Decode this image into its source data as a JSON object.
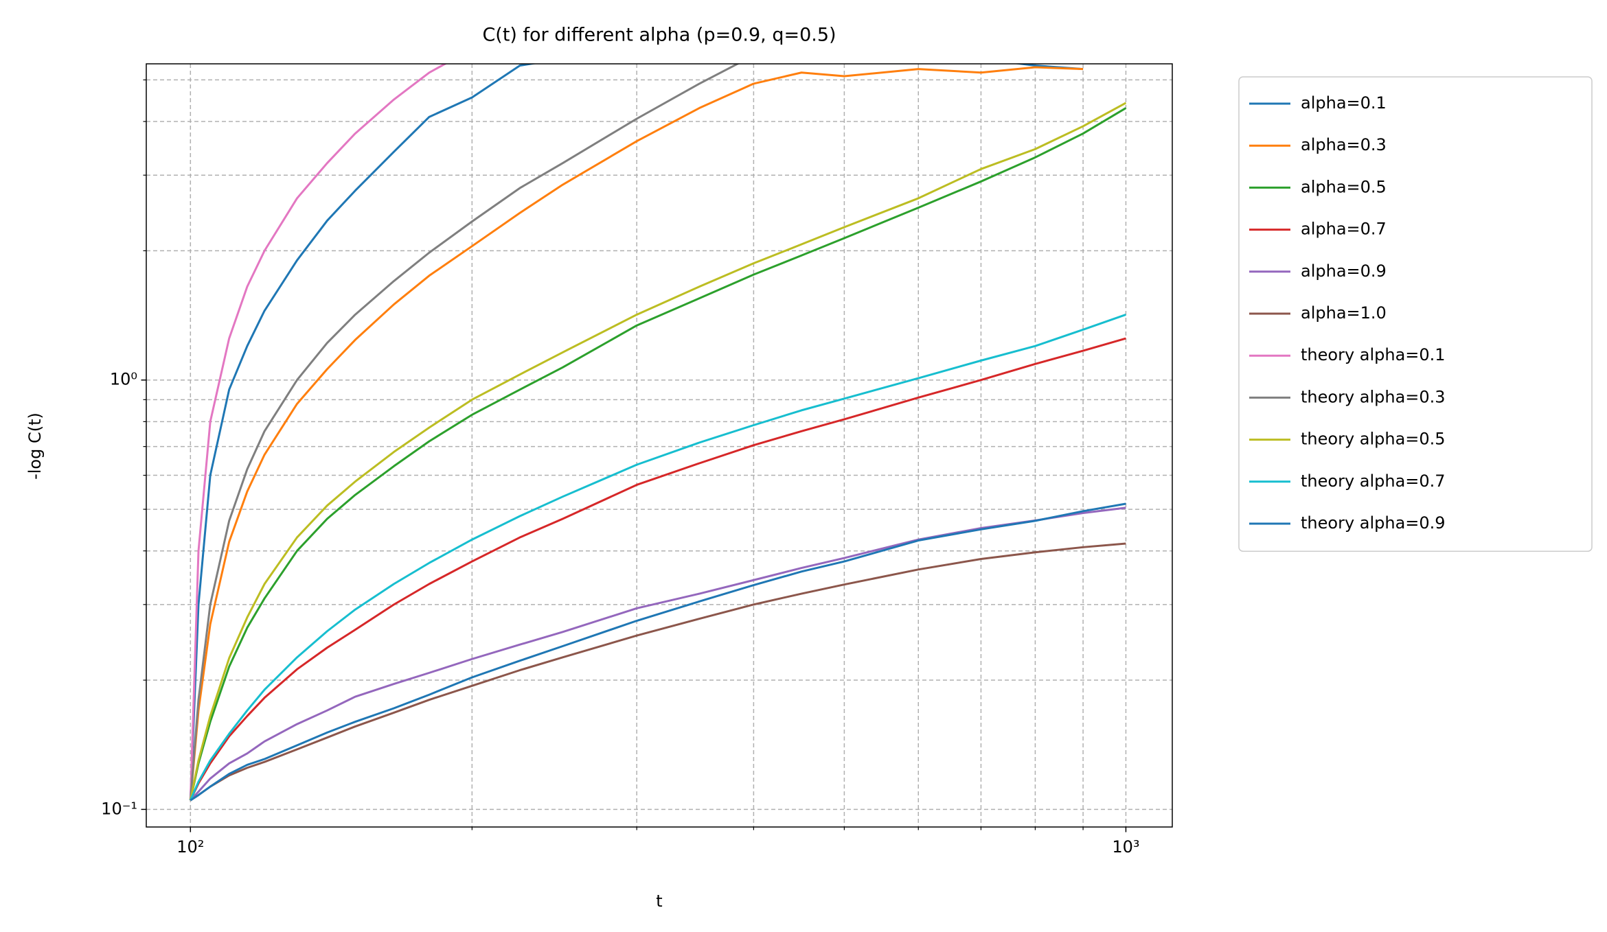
{
  "chart_data": {
    "type": "line",
    "title": "C(t) for different alpha (p=0.9, q=0.5)",
    "x_label": "t",
    "y_label": "-log C(t)",
    "xscale": "log",
    "yscale": "log",
    "grid": "both",
    "legend": "outside",
    "xlim": [
      89.7,
      1121
    ],
    "ylim": [
      0.091,
      5.45
    ],
    "xticks": [
      {
        "value": 100,
        "label": "10²"
      },
      {
        "value": 1000,
        "label": "10³"
      }
    ],
    "xminorticks": [
      200,
      300,
      400,
      500,
      600,
      700,
      800,
      900
    ],
    "yticks": [
      {
        "value": 0.1,
        "label": "10⁻¹"
      },
      {
        "value": 1,
        "label": "10⁰"
      }
    ],
    "yminorticks": [
      0.2,
      0.3,
      0.4,
      0.5,
      0.6,
      0.7,
      0.8,
      0.9,
      2,
      3,
      4,
      5
    ],
    "x": [
      100,
      102,
      105,
      110,
      115,
      120,
      130,
      140,
      150,
      165,
      180,
      200,
      225,
      250,
      300,
      350,
      400,
      450,
      500,
      600,
      700,
      800,
      900,
      1000
    ],
    "series": [
      {
        "name": "alpha=0.1",
        "color": "#1f77b4",
        "values": [
          0.105,
          0.3,
          0.6,
          0.95,
          1.2,
          1.45,
          1.9,
          2.35,
          2.76,
          3.4,
          4.1,
          4.55,
          5.4,
          5.6,
          5.6,
          5.5,
          5.7,
          5.6,
          5.6,
          5.5,
          5.6,
          5.4,
          5.3,
          null
        ]
      },
      {
        "name": "alpha=0.3",
        "color": "#ff7f0e",
        "values": [
          0.105,
          0.17,
          0.27,
          0.42,
          0.55,
          0.67,
          0.88,
          1.06,
          1.24,
          1.5,
          1.75,
          2.05,
          2.45,
          2.85,
          3.6,
          4.3,
          4.9,
          5.2,
          5.1,
          5.3,
          5.2,
          5.35,
          5.3,
          null
        ]
      },
      {
        "name": "alpha=0.5",
        "color": "#2ca02c",
        "values": [
          0.105,
          0.128,
          0.16,
          0.215,
          0.265,
          0.31,
          0.4,
          0.475,
          0.54,
          0.63,
          0.72,
          0.83,
          0.95,
          1.07,
          1.34,
          1.55,
          1.76,
          1.95,
          2.14,
          2.52,
          2.9,
          3.3,
          3.75,
          4.3
        ]
      },
      {
        "name": "alpha=0.7",
        "color": "#d62728",
        "values": [
          0.105,
          0.115,
          0.128,
          0.148,
          0.165,
          0.182,
          0.212,
          0.238,
          0.262,
          0.3,
          0.335,
          0.378,
          0.43,
          0.475,
          0.57,
          0.64,
          0.705,
          0.76,
          0.81,
          0.91,
          1.0,
          1.09,
          1.17,
          1.25
        ]
      },
      {
        "name": "alpha=0.9",
        "color": "#9467bd",
        "values": [
          0.105,
          0.11,
          0.118,
          0.128,
          0.135,
          0.144,
          0.158,
          0.17,
          0.183,
          0.196,
          0.208,
          0.224,
          0.242,
          0.259,
          0.294,
          0.318,
          0.342,
          0.365,
          0.385,
          0.425,
          0.452,
          0.471,
          0.49,
          0.504
        ]
      },
      {
        "name": "alpha=1.0",
        "color": "#8c564b",
        "values": [
          0.105,
          0.108,
          0.113,
          0.12,
          0.125,
          0.129,
          0.138,
          0.147,
          0.156,
          0.168,
          0.18,
          0.194,
          0.211,
          0.226,
          0.254,
          0.278,
          0.3,
          0.318,
          0.334,
          0.362,
          0.383,
          0.397,
          0.408,
          0.416
        ]
      },
      {
        "name": "theory alpha=0.1",
        "color": "#e377c2",
        "values": [
          0.105,
          0.4,
          0.8,
          1.25,
          1.65,
          2.0,
          2.65,
          3.2,
          3.75,
          4.5,
          5.2,
          5.9,
          null,
          null,
          null,
          null,
          null,
          null,
          null,
          null,
          null,
          null,
          null,
          null
        ]
      },
      {
        "name": "theory alpha=0.3",
        "color": "#7f7f7f",
        "values": [
          0.105,
          0.18,
          0.3,
          0.47,
          0.62,
          0.76,
          1.0,
          1.22,
          1.42,
          1.7,
          1.98,
          2.34,
          2.8,
          3.2,
          4.06,
          4.9,
          5.7,
          null,
          null,
          null,
          null,
          null,
          null,
          null
        ]
      },
      {
        "name": "theory alpha=0.5",
        "color": "#bcbd22",
        "values": [
          0.105,
          0.13,
          0.165,
          0.225,
          0.28,
          0.335,
          0.43,
          0.51,
          0.58,
          0.68,
          0.775,
          0.9,
          1.03,
          1.16,
          1.42,
          1.65,
          1.87,
          2.07,
          2.27,
          2.65,
          3.1,
          3.45,
          3.9,
          4.42
        ]
      },
      {
        "name": "theory alpha=0.7",
        "color": "#17becf",
        "values": [
          0.105,
          0.116,
          0.13,
          0.15,
          0.17,
          0.19,
          0.226,
          0.26,
          0.292,
          0.335,
          0.375,
          0.425,
          0.482,
          0.535,
          0.635,
          0.715,
          0.785,
          0.85,
          0.905,
          1.01,
          1.11,
          1.2,
          1.31,
          1.42
        ]
      },
      {
        "name": "theory alpha=0.9",
        "color": "#1f77b4",
        "values": [
          0.105,
          0.108,
          0.113,
          0.121,
          0.127,
          0.131,
          0.141,
          0.151,
          0.16,
          0.172,
          0.185,
          0.203,
          0.222,
          0.24,
          0.275,
          0.305,
          0.333,
          0.358,
          0.378,
          0.423,
          0.449,
          0.47,
          0.495,
          0.515
        ]
      }
    ]
  }
}
